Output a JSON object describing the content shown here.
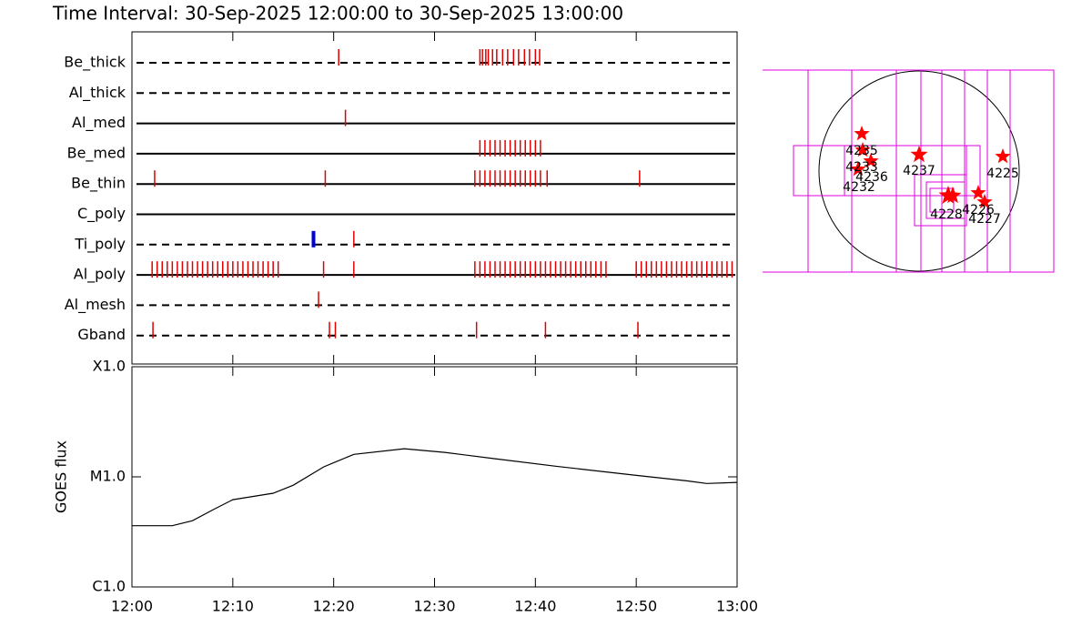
{
  "chart_data": [
    {
      "type": "timeline",
      "title": "Time Interval: 30-Sep-2025 12:00:00 to 30-Sep-2025 13:00:00",
      "xlim": [
        "12:00",
        "13:00"
      ],
      "rows": [
        {
          "name": "Be_thick",
          "style": "dashed",
          "groups": [
            {
              "color": "#e00000",
              "times": [
                "12:20:30",
                "12:34:30",
                "12:34:45",
                "12:35:05",
                "12:35:20",
                "12:35:45",
                "12:36:10",
                "12:36:45",
                "12:37:15",
                "12:37:50",
                "12:38:20",
                "12:38:55",
                "12:39:25",
                "12:40:00",
                "12:40:25"
              ]
            }
          ]
        },
        {
          "name": "Al_thick",
          "style": "dashed",
          "groups": []
        },
        {
          "name": "Al_med",
          "style": "solid",
          "groups": [
            {
              "color": "#e00000",
              "times": [
                "12:21:10"
              ]
            }
          ]
        },
        {
          "name": "Be_med",
          "style": "solid",
          "groups": [
            {
              "color": "#e00000",
              "times": [
                "12:34:30",
                "12:35:00",
                "12:35:30",
                "12:36:00",
                "12:36:30",
                "12:37:00",
                "12:37:30",
                "12:38:00",
                "12:38:30",
                "12:39:00",
                "12:39:30",
                "12:40:00",
                "12:40:30"
              ]
            }
          ]
        },
        {
          "name": "Be_thin",
          "style": "solid",
          "groups": [
            {
              "color": "#e00000",
              "times": [
                "12:02:15",
                "12:19:10",
                "12:34:00",
                "12:34:30",
                "12:35:00",
                "12:35:30",
                "12:36:00",
                "12:36:30",
                "12:37:00",
                "12:37:30",
                "12:38:00",
                "12:38:30",
                "12:39:00",
                "12:39:30",
                "12:40:00",
                "12:40:30",
                "12:41:10",
                "12:50:20"
              ]
            }
          ]
        },
        {
          "name": "C_poly",
          "style": "solid",
          "groups": []
        },
        {
          "name": "Ti_poly",
          "style": "dashed",
          "groups": [
            {
              "color": "#0000e0",
              "times": [
                "12:18:00"
              ]
            },
            {
              "color": "#e00000",
              "times": [
                "12:22:00"
              ]
            }
          ]
        },
        {
          "name": "Al_poly",
          "style": "solid",
          "groups": [
            {
              "color": "#e00000",
              "times": [
                "12:02:00",
                "12:02:30",
                "12:03:00",
                "12:03:30",
                "12:04:00",
                "12:04:30",
                "12:05:00",
                "12:05:30",
                "12:06:00",
                "12:06:30",
                "12:07:00",
                "12:07:30",
                "12:08:00",
                "12:08:30",
                "12:09:00",
                "12:09:30",
                "12:10:00",
                "12:10:30",
                "12:11:00",
                "12:11:30",
                "12:12:00",
                "12:12:30",
                "12:13:00",
                "12:13:30",
                "12:14:00",
                "12:14:30",
                "12:19:00",
                "12:22:00",
                "12:34:00",
                "12:34:30",
                "12:35:00",
                "12:35:30",
                "12:36:00",
                "12:36:30",
                "12:37:00",
                "12:37:30",
                "12:38:00",
                "12:38:30",
                "12:39:00",
                "12:39:30",
                "12:40:00",
                "12:40:30",
                "12:41:00",
                "12:41:30",
                "12:42:00",
                "12:42:30",
                "12:43:00",
                "12:43:30",
                "12:44:00",
                "12:44:30",
                "12:45:00",
                "12:45:30",
                "12:46:00",
                "12:46:30",
                "12:47:00",
                "12:50:00",
                "12:50:30",
                "12:51:00",
                "12:51:30",
                "12:52:00",
                "12:52:30",
                "12:53:00",
                "12:53:30",
                "12:54:00",
                "12:54:30",
                "12:55:00",
                "12:55:30",
                "12:56:00",
                "12:56:30",
                "12:57:00",
                "12:57:30",
                "12:58:00",
                "12:58:30",
                "12:59:00",
                "12:59:30"
              ]
            }
          ]
        },
        {
          "name": "Al_mesh",
          "style": "dashed",
          "groups": [
            {
              "color": "#e00000",
              "times": [
                "12:18:30"
              ]
            }
          ]
        },
        {
          "name": "Gband",
          "style": "dashed",
          "groups": [
            {
              "color": "#e00000",
              "times": [
                "12:02:05",
                "12:19:35",
                "12:20:10",
                "12:34:10",
                "12:41:00",
                "12:50:10"
              ]
            }
          ]
        }
      ]
    },
    {
      "type": "line",
      "ylabel": "GOES flux",
      "log_y": true,
      "color": "#000000",
      "xlim": [
        "12:00",
        "13:00"
      ],
      "xticks": [
        "12:00",
        "12:10",
        "12:20",
        "12:30",
        "12:40",
        "12:50",
        "13:00"
      ],
      "ylim": [
        1e-06,
        0.0001
      ],
      "yticks": [
        {
          "value": 1e-06,
          "label": "C1.0"
        },
        {
          "value": 1e-05,
          "label": "M1.0"
        },
        {
          "value": 0.0001,
          "label": "X1.0"
        }
      ],
      "x": [
        "12:00",
        "12:04",
        "12:06",
        "12:08",
        "12:10",
        "12:14",
        "12:16",
        "12:19",
        "12:22",
        "12:27",
        "12:31",
        "12:36",
        "12:42",
        "12:50",
        "12:55",
        "12:57",
        "13:00"
      ],
      "values": [
        3.6e-06,
        3.6e-06,
        4e-06,
        5e-06,
        6.2e-06,
        7.1e-06,
        8.4e-06,
        1.23e-05,
        1.6e-05,
        1.8e-05,
        1.67e-05,
        1.46e-05,
        1.25e-05,
        1.03e-05,
        9.2e-06,
        8.7e-06,
        8.9e-06
      ]
    },
    {
      "type": "map",
      "star_color": "#ff0000",
      "box_color": "#e000e0",
      "labels": [
        "4235",
        "4233",
        "4236",
        "4232",
        "4237",
        "4225",
        "4228",
        "4226",
        "4227"
      ]
    }
  ]
}
